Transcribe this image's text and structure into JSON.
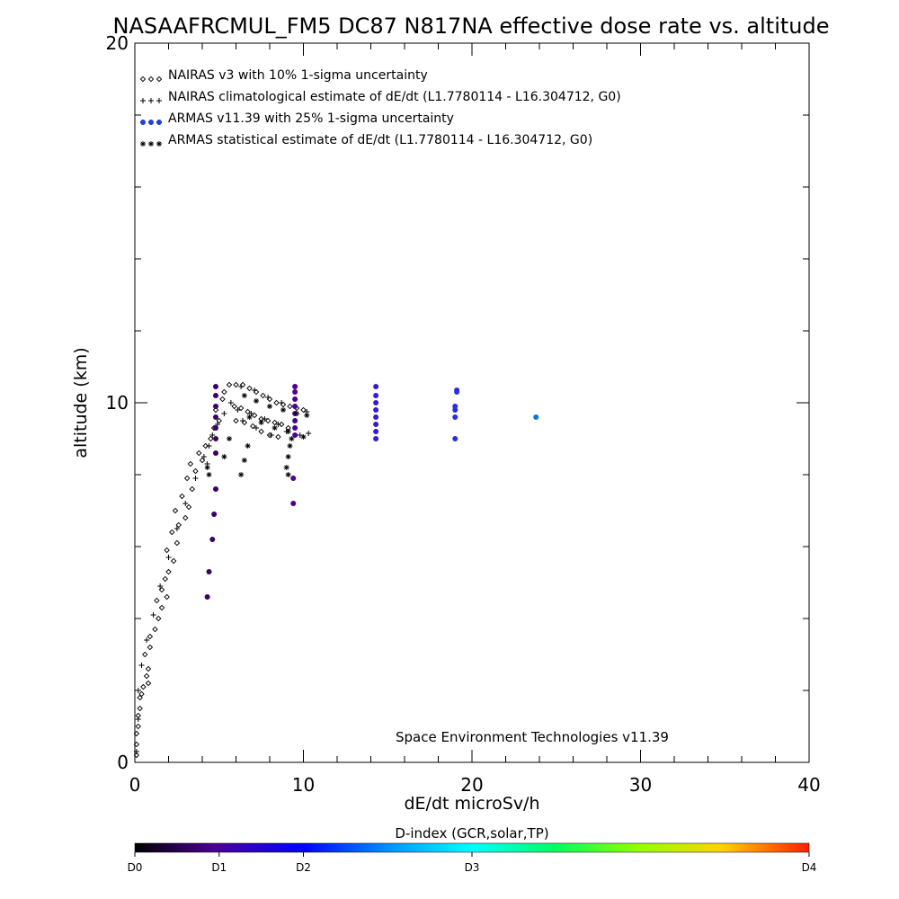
{
  "chart_data": {
    "type": "scatter",
    "title": "NASAAFRCMUL_FM5 DC87 N817NA effective dose rate vs. altitude",
    "xlabel": "dE/dt microSv/h",
    "ylabel": "altitude (km)",
    "xlim": [
      0,
      40
    ],
    "ylim": [
      0,
      20
    ],
    "x_ticks": [
      0,
      10,
      20,
      30,
      40
    ],
    "y_ticks": [
      0,
      10,
      20
    ],
    "legend_placement": "top-left",
    "grid": false,
    "annotation": "Space Environment Technologies v11.39",
    "series": [
      {
        "name": "NAIRAS v3 with 10% 1-sigma uncertainty",
        "marker": "diamond",
        "color": "#000000",
        "points": [
          [
            0.1,
            0.2
          ],
          [
            0.1,
            0.5
          ],
          [
            0.1,
            0.8
          ],
          [
            0.2,
            1.0
          ],
          [
            0.2,
            1.3
          ],
          [
            0.3,
            1.5
          ],
          [
            0.3,
            1.8
          ],
          [
            0.4,
            1.9
          ],
          [
            0.5,
            2.1
          ],
          [
            0.8,
            2.2
          ],
          [
            0.7,
            2.4
          ],
          [
            0.8,
            2.6
          ],
          [
            0.6,
            3.0
          ],
          [
            0.9,
            3.2
          ],
          [
            0.9,
            3.5
          ],
          [
            1.2,
            3.7
          ],
          [
            1.4,
            4.0
          ],
          [
            1.6,
            4.3
          ],
          [
            1.3,
            4.5
          ],
          [
            1.9,
            4.6
          ],
          [
            1.6,
            4.8
          ],
          [
            1.8,
            5.1
          ],
          [
            2.0,
            5.3
          ],
          [
            2.3,
            5.6
          ],
          [
            1.9,
            5.9
          ],
          [
            2.5,
            6.1
          ],
          [
            2.2,
            6.4
          ],
          [
            2.6,
            6.6
          ],
          [
            3.0,
            6.8
          ],
          [
            2.4,
            7.0
          ],
          [
            3.2,
            7.1
          ],
          [
            2.8,
            7.4
          ],
          [
            3.4,
            7.6
          ],
          [
            3.1,
            7.9
          ],
          [
            3.6,
            8.1
          ],
          [
            3.3,
            8.3
          ],
          [
            4.0,
            8.4
          ],
          [
            3.8,
            8.6
          ],
          [
            4.2,
            8.8
          ],
          [
            4.5,
            9.0
          ],
          [
            4.7,
            9.3
          ],
          [
            5.0,
            9.5
          ],
          [
            4.8,
            9.8
          ],
          [
            5.2,
            10.1
          ],
          [
            5.3,
            10.3
          ],
          [
            5.6,
            10.5
          ],
          [
            6.0,
            10.5
          ],
          [
            6.4,
            10.5
          ],
          [
            6.8,
            10.4
          ],
          [
            7.2,
            10.3
          ],
          [
            7.6,
            10.2
          ],
          [
            8.0,
            10.1
          ],
          [
            8.4,
            10.0
          ],
          [
            8.8,
            9.95
          ],
          [
            9.2,
            9.9
          ],
          [
            9.6,
            9.85
          ],
          [
            10.0,
            9.8
          ],
          [
            5.9,
            9.9
          ],
          [
            6.3,
            9.85
          ],
          [
            6.7,
            9.75
          ],
          [
            7.1,
            9.65
          ],
          [
            7.5,
            9.55
          ],
          [
            7.9,
            9.5
          ],
          [
            8.3,
            9.45
          ],
          [
            8.7,
            9.4
          ],
          [
            9.1,
            9.3
          ],
          [
            6.0,
            9.5
          ],
          [
            6.5,
            9.45
          ],
          [
            7.0,
            9.35
          ],
          [
            7.5,
            9.2
          ],
          [
            8.0,
            9.1
          ],
          [
            8.5,
            9.05
          ]
        ]
      },
      {
        "name": "NAIRAS climatological estimate of dE/dt (L1.7780114 - L16.304712, G0)",
        "marker": "plus",
        "color": "#000000",
        "points": [
          [
            0.1,
            0.3
          ],
          [
            0.2,
            1.2
          ],
          [
            0.2,
            2.0
          ],
          [
            0.4,
            2.7
          ],
          [
            0.7,
            3.4
          ],
          [
            1.1,
            4.1
          ],
          [
            1.5,
            4.9
          ],
          [
            2.0,
            5.7
          ],
          [
            2.5,
            6.5
          ],
          [
            3.0,
            7.2
          ],
          [
            3.6,
            7.9
          ],
          [
            4.1,
            8.5
          ],
          [
            4.3,
            8.3
          ],
          [
            4.4,
            8.8
          ],
          [
            4.6,
            9.1
          ],
          [
            4.9,
            9.4
          ],
          [
            5.3,
            9.7
          ],
          [
            5.7,
            10.0
          ],
          [
            6.3,
            10.45
          ],
          [
            7.1,
            10.35
          ],
          [
            7.9,
            10.15
          ],
          [
            8.7,
            10.0
          ],
          [
            9.5,
            9.9
          ],
          [
            10.2,
            9.75
          ],
          [
            6.1,
            9.8
          ],
          [
            6.9,
            9.7
          ],
          [
            7.7,
            9.55
          ],
          [
            8.5,
            9.4
          ],
          [
            6.4,
            9.5
          ],
          [
            7.2,
            9.3
          ],
          [
            8.1,
            9.1
          ],
          [
            9.0,
            9.2
          ],
          [
            9.8,
            9.1
          ],
          [
            10.3,
            9.15
          ]
        ]
      },
      {
        "name": "ARMAS v11.39 with 25% 1-sigma uncertainty",
        "marker": "dot",
        "color_scale": "D-index",
        "points": [
          [
            4.3,
            4.6,
            "#3c0064"
          ],
          [
            4.4,
            5.3,
            "#3c0064"
          ],
          [
            4.6,
            6.2,
            "#3c0064"
          ],
          [
            4.7,
            6.9,
            "#3c0064"
          ],
          [
            4.8,
            7.6,
            "#3c0064"
          ],
          [
            4.8,
            8.6,
            "#3c0064"
          ],
          [
            4.8,
            9.0,
            "#3c0064"
          ],
          [
            4.8,
            9.3,
            "#3c0064"
          ],
          [
            4.8,
            9.6,
            "#3c0064"
          ],
          [
            4.8,
            9.9,
            "#3c0064"
          ],
          [
            4.8,
            10.2,
            "#3c0064"
          ],
          [
            4.8,
            10.45,
            "#3c0064"
          ],
          [
            9.4,
            7.2,
            "#4b0096"
          ],
          [
            9.4,
            7.9,
            "#4b0096"
          ],
          [
            9.5,
            9.1,
            "#4b0096"
          ],
          [
            9.5,
            9.3,
            "#4b0096"
          ],
          [
            9.5,
            9.5,
            "#4b0096"
          ],
          [
            9.5,
            9.7,
            "#4b0096"
          ],
          [
            9.5,
            9.9,
            "#4b0096"
          ],
          [
            9.5,
            10.1,
            "#4b0096"
          ],
          [
            9.5,
            10.3,
            "#4b0096"
          ],
          [
            9.5,
            10.45,
            "#4b0096"
          ],
          [
            14.3,
            9.0,
            "#3a1acc"
          ],
          [
            14.3,
            9.2,
            "#3a1acc"
          ],
          [
            14.3,
            9.4,
            "#3a1acc"
          ],
          [
            14.3,
            9.6,
            "#3a1acc"
          ],
          [
            14.3,
            9.8,
            "#3a1acc"
          ],
          [
            14.3,
            10.0,
            "#3a1acc"
          ],
          [
            14.3,
            10.2,
            "#3a1acc"
          ],
          [
            14.3,
            10.45,
            "#3a1acc"
          ],
          [
            19.0,
            9.0,
            "#2a2ee0"
          ],
          [
            19.0,
            9.6,
            "#2a2ee0"
          ],
          [
            19.0,
            9.8,
            "#2a2ee0"
          ],
          [
            19.0,
            9.9,
            "#2a2ee0"
          ],
          [
            19.1,
            10.3,
            "#2a2ee0"
          ],
          [
            19.1,
            10.35,
            "#2a2ee0"
          ],
          [
            23.8,
            9.6,
            "#0a78d8"
          ]
        ]
      },
      {
        "name": "ARMAS statistical estimate of dE/dt (L1.7780114 - L16.304712, G0)",
        "marker": "asterisk",
        "color": "#000000",
        "points": [
          [
            4.3,
            8.2
          ],
          [
            4.4,
            8.0
          ],
          [
            5.3,
            8.5
          ],
          [
            5.6,
            9.0
          ],
          [
            6.5,
            8.4
          ],
          [
            6.7,
            8.8
          ],
          [
            6.3,
            8.0
          ],
          [
            6.5,
            10.2
          ],
          [
            7.2,
            10.05
          ],
          [
            8.0,
            9.9
          ],
          [
            8.8,
            9.8
          ],
          [
            9.6,
            9.7
          ],
          [
            10.2,
            9.65
          ],
          [
            6.8,
            9.6
          ],
          [
            7.5,
            9.45
          ],
          [
            8.3,
            9.3
          ],
          [
            9.1,
            9.2
          ],
          [
            10.0,
            9.05
          ],
          [
            9.0,
            8.2
          ],
          [
            9.1,
            8.5
          ],
          [
            9.1,
            8.0
          ],
          [
            9.2,
            8.8
          ],
          [
            9.3,
            9.0
          ]
        ]
      }
    ],
    "colorbar": {
      "title": "D-index (GCR,solar,TP)",
      "labels": [
        {
          "text": "D0",
          "pos": 0.0
        },
        {
          "text": "D1",
          "pos": 0.125
        },
        {
          "text": "D2",
          "pos": 0.25
        },
        {
          "text": "D3",
          "pos": 0.5
        },
        {
          "text": "D4",
          "pos": 1.0
        }
      ]
    }
  }
}
